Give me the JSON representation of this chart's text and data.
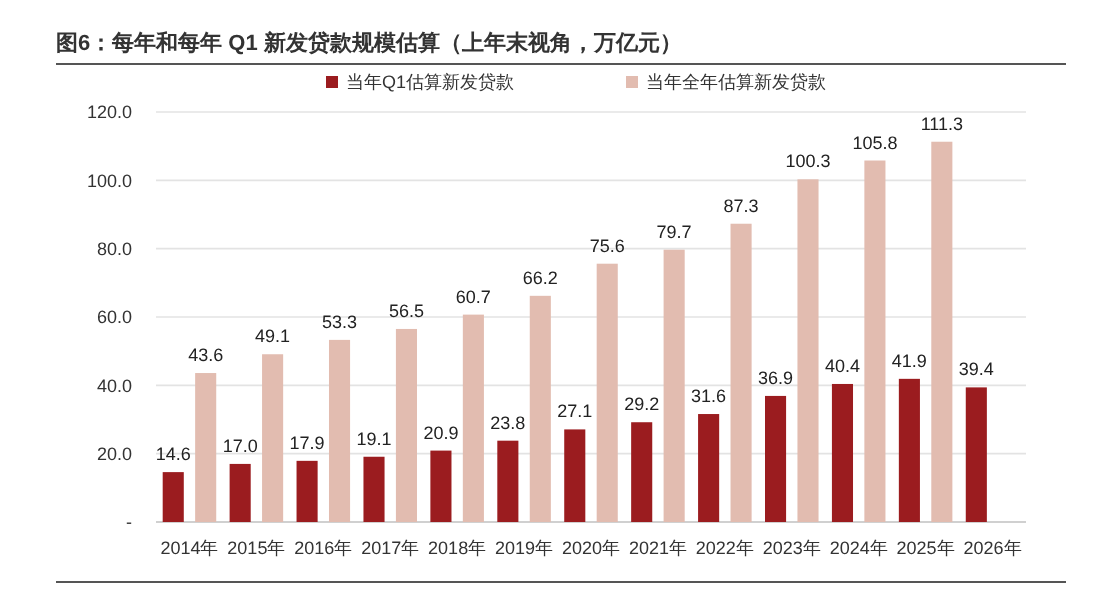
{
  "chart_data": {
    "type": "bar",
    "title": "图6：每年和每年 Q1 新发贷款规模估算（上年末视角，万亿元）",
    "categories": [
      "2014年",
      "2015年",
      "2016年",
      "2017年",
      "2018年",
      "2019年",
      "2020年",
      "2021年",
      "2022年",
      "2023年",
      "2024年",
      "2025年",
      "2026年"
    ],
    "series": [
      {
        "name": "当年Q1估算新发贷款",
        "color": "#9b1c1f",
        "values": [
          14.6,
          17.0,
          17.9,
          19.1,
          20.9,
          23.8,
          27.1,
          29.2,
          31.6,
          36.9,
          40.4,
          41.9,
          39.4
        ],
        "value_labels": [
          "14.6",
          "17.0",
          "17.9",
          "19.1",
          "20.9",
          "23.8",
          "27.1",
          "29.2",
          "31.6",
          "36.9",
          "40.4",
          "41.9",
          "39.4"
        ]
      },
      {
        "name": "当年全年估算新发贷款",
        "color": "#e2bcb0",
        "values": [
          43.6,
          49.1,
          53.3,
          56.5,
          60.7,
          66.2,
          75.6,
          79.7,
          87.3,
          100.3,
          105.8,
          111.3,
          null
        ],
        "value_labels": [
          "43.6",
          "49.1",
          "53.3",
          "56.5",
          "60.7",
          "66.2",
          "75.6",
          "79.7",
          "87.3",
          "100.3",
          "105.8",
          "111.3",
          null
        ]
      }
    ],
    "ylim": [
      0,
      120
    ],
    "yticks": [
      {
        "value": 0,
        "label": "-"
      },
      {
        "value": 20,
        "label": "20.0"
      },
      {
        "value": 40,
        "label": "40.0"
      },
      {
        "value": 60,
        "label": "60.0"
      },
      {
        "value": 80,
        "label": "80.0"
      },
      {
        "value": 100,
        "label": "100.0"
      },
      {
        "value": 120,
        "label": "120.0"
      }
    ],
    "grid": "y",
    "legend": "top"
  }
}
